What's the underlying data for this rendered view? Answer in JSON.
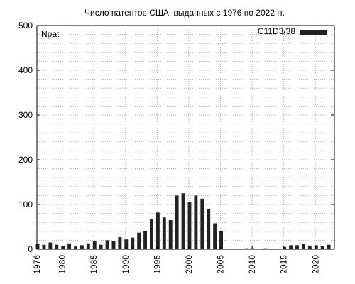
{
  "chart_data": {
    "type": "bar",
    "title": "Число патентов США, выданных с 1976 по 2022 гг.",
    "ylabel": "Npat",
    "xlabel": "",
    "ylim": [
      0,
      500
    ],
    "xlim": [
      1976,
      2023
    ],
    "x_ticks": [
      1976,
      1980,
      1985,
      1990,
      1995,
      2000,
      2005,
      2010,
      2015,
      2020
    ],
    "y_ticks": [
      0,
      100,
      200,
      300,
      400,
      500
    ],
    "grid": true,
    "legend_position": "top-right",
    "series": [
      {
        "name": "C11D3/38",
        "color": "#222222",
        "x": [
          1976,
          1977,
          1978,
          1979,
          1980,
          1981,
          1982,
          1983,
          1984,
          1985,
          1986,
          1987,
          1988,
          1989,
          1990,
          1991,
          1992,
          1993,
          1994,
          1995,
          1996,
          1997,
          1998,
          1999,
          2000,
          2001,
          2002,
          2003,
          2004,
          2005,
          2006,
          2007,
          2008,
          2009,
          2010,
          2011,
          2012,
          2013,
          2014,
          2015,
          2016,
          2017,
          2018,
          2019,
          2020,
          2021,
          2022
        ],
        "values": [
          12,
          10,
          15,
          10,
          7,
          13,
          6,
          9,
          13,
          19,
          10,
          20,
          18,
          27,
          22,
          26,
          37,
          40,
          68,
          82,
          71,
          65,
          120,
          125,
          105,
          120,
          113,
          90,
          58,
          40,
          0,
          0,
          0,
          2,
          2,
          0,
          2,
          0,
          0,
          5,
          9,
          9,
          12,
          8,
          9,
          7,
          10
        ]
      }
    ]
  }
}
